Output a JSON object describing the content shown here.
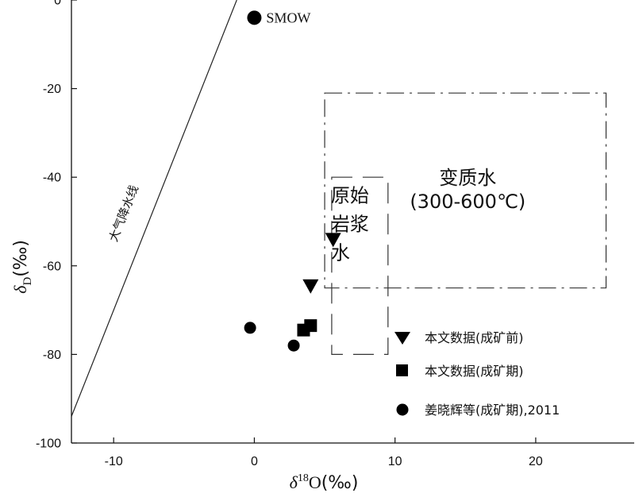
{
  "chart_data": {
    "type": "scatter",
    "xlim": [
      -13,
      27
    ],
    "ylim": [
      -100,
      0
    ],
    "x_ticks": [
      -10,
      0,
      10,
      20
    ],
    "y_ticks": [
      0,
      -20,
      -40,
      -60,
      -80,
      -100
    ],
    "x_tick_labels": [
      "-10",
      "0",
      "10",
      "20"
    ],
    "y_tick_labels": [
      "0",
      "-20",
      "-40",
      "-60",
      "-80",
      "-100"
    ],
    "xlabel": {
      "symbol": "δ",
      "sup": "18",
      "main": "O",
      "unit": "(‰)"
    },
    "ylabel": {
      "symbol": "δ",
      "sub": "D",
      "unit": "(‰)"
    },
    "grid": false,
    "legend_position": "bottom-right",
    "reference_point": {
      "label": "SMOW",
      "x": 0,
      "y": -4
    },
    "meteoric_water_line": {
      "label": "大气降水线",
      "slope": 8,
      "intercept": 10
    },
    "regions": [
      {
        "name": "metamorphic",
        "label_lines": [
          "变质水",
          "(300-600℃)"
        ],
        "x": [
          5,
          25
        ],
        "y": [
          -65,
          -21
        ],
        "style": "dash-dot"
      },
      {
        "name": "primary-magmatic",
        "label_lines": [
          "原始",
          "岩浆",
          "水"
        ],
        "x": [
          5.5,
          9.5
        ],
        "y": [
          -80,
          -40
        ],
        "style": "dashed"
      }
    ],
    "series": [
      {
        "name": "本文数据(成矿前)",
        "marker": "triangle-down",
        "points": [
          [
            5.6,
            -54
          ],
          [
            4,
            -64.5
          ]
        ]
      },
      {
        "name": "本文数据(成矿期)",
        "marker": "square",
        "points": [
          [
            3.5,
            -74.5
          ],
          [
            4,
            -73.5
          ]
        ]
      },
      {
        "name": "姜晓辉等(成矿期),2011",
        "marker": "circle",
        "points": [
          [
            -0.3,
            -74
          ],
          [
            2.8,
            -78
          ]
        ]
      }
    ]
  }
}
